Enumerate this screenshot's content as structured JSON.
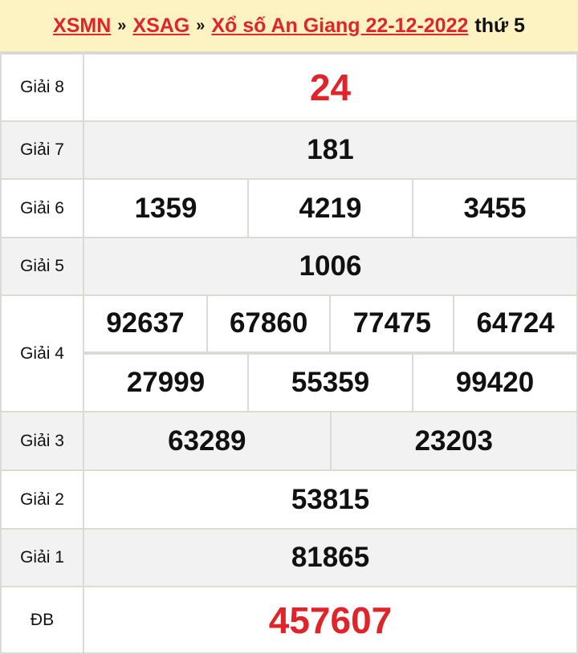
{
  "header": {
    "crumbs": [
      "XSMN",
      "XSAG",
      "Xổ số An Giang 22-12-2022"
    ],
    "separator": "»",
    "weekday": "thứ 5"
  },
  "prizes": [
    {
      "label": "Giải 8",
      "rows": [
        [
          "24"
        ]
      ],
      "highlight": true
    },
    {
      "label": "Giải 7",
      "rows": [
        [
          "181"
        ]
      ]
    },
    {
      "label": "Giải 6",
      "rows": [
        [
          "1359",
          "4219",
          "3455"
        ]
      ]
    },
    {
      "label": "Giải 5",
      "rows": [
        [
          "1006"
        ]
      ]
    },
    {
      "label": "Giải 4",
      "rows": [
        [
          "92637",
          "67860",
          "77475",
          "64724"
        ],
        [
          "27999",
          "55359",
          "99420"
        ]
      ]
    },
    {
      "label": "Giải 3",
      "rows": [
        [
          "63289",
          "23203"
        ]
      ]
    },
    {
      "label": "Giải 2",
      "rows": [
        [
          "53815"
        ]
      ]
    },
    {
      "label": "Giải 1",
      "rows": [
        [
          "81865"
        ]
      ]
    },
    {
      "label": "ĐB",
      "rows": [
        [
          "457607"
        ]
      ],
      "highlight": true
    }
  ],
  "colors": {
    "accent": "#e0242a",
    "header_bg": "#fdf2c2",
    "alt_row": "#f2f2f2"
  }
}
